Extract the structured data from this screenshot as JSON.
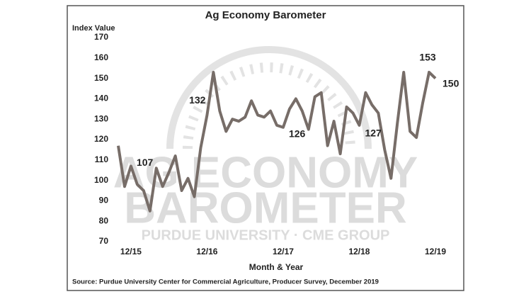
{
  "chart_data": {
    "type": "line",
    "title": "Ag Economy Barometer",
    "y_label": "Index Value",
    "x_label": "Month & Year",
    "source": "Source: Purdue University Center for Commercial Agriculture, Producer Survey, December 2019",
    "watermark": [
      "AG ECONOMY",
      "BAROMETER",
      "PURDUE UNIVERSITY  ·  CME GROUP"
    ],
    "categories": [
      null,
      null,
      "12/15",
      null,
      null,
      null,
      null,
      null,
      null,
      null,
      null,
      null,
      null,
      null,
      "12/16",
      null,
      null,
      null,
      null,
      null,
      null,
      null,
      null,
      null,
      null,
      null,
      "12/17",
      null,
      null,
      null,
      null,
      null,
      null,
      null,
      null,
      null,
      null,
      null,
      "12/18",
      null,
      null,
      null,
      null,
      null,
      null,
      null,
      null,
      null,
      null,
      null,
      "12/19"
    ],
    "series": [
      {
        "name": "Index Value",
        "color": "#776d68",
        "values": [
          117,
          97,
          107,
          98,
          95,
          85,
          106,
          97,
          104,
          112,
          95,
          101,
          92,
          116,
          132,
          153,
          134,
          124,
          130,
          129,
          131,
          139,
          132,
          131,
          134,
          127,
          126,
          135,
          140,
          134,
          125,
          141,
          143,
          117,
          129,
          113,
          136,
          133,
          127,
          143,
          137,
          133,
          115,
          101,
          128,
          153,
          124,
          121,
          138,
          153,
          150
        ]
      }
    ],
    "data_labels": [
      2,
      14,
      26,
      38,
      49,
      50
    ],
    "ylim": [
      70,
      170
    ],
    "yticks": [
      70,
      80,
      90,
      100,
      110,
      120,
      130,
      140,
      150,
      160,
      170
    ]
  }
}
